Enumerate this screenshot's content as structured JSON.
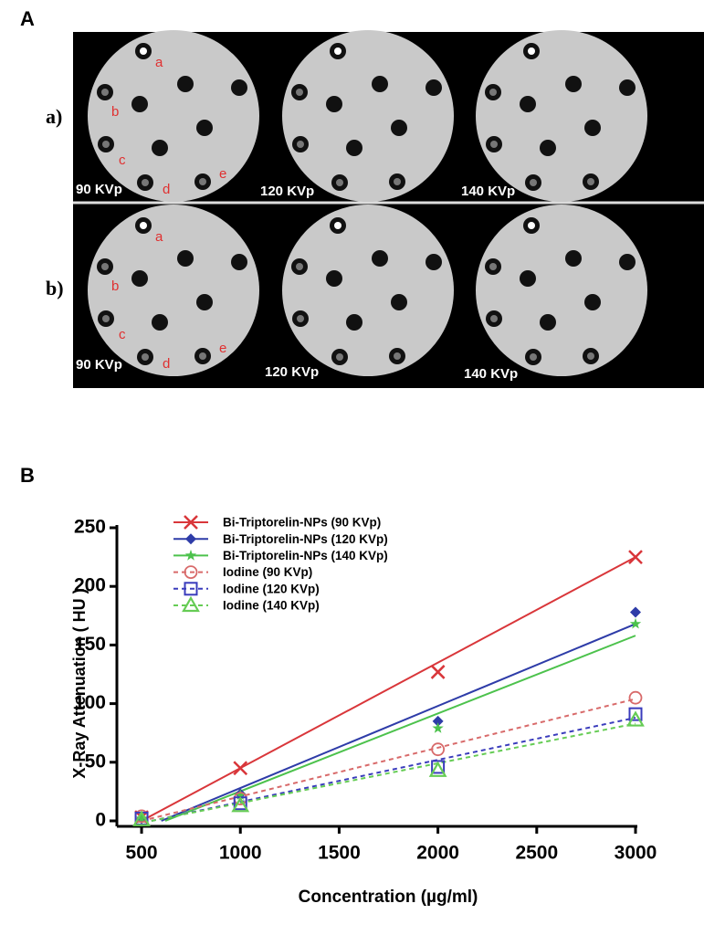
{
  "panel_a": {
    "label": "A",
    "rows": [
      {
        "label": "a)",
        "kvp": [
          "90 KVp",
          "120 KVp",
          "140 KVp"
        ],
        "letters": [
          "a",
          "b",
          "c",
          "d",
          "e"
        ]
      },
      {
        "label": "b)",
        "kvp": [
          "90 KVp",
          "120 KVp",
          "140 KVp"
        ],
        "letters": [
          "a",
          "b",
          "c",
          "d",
          "e"
        ]
      }
    ]
  },
  "panel_b": {
    "label": "B"
  },
  "chart_data": {
    "type": "line",
    "xlabel": "Concentration (µg/ml)",
    "ylabel": "X-Ray Attenuation ( HU )",
    "x": [
      500,
      1000,
      2000,
      3000
    ],
    "xlim": [
      375,
      3000
    ],
    "xticks": [
      500,
      1000,
      1500,
      2000,
      2500,
      3000
    ],
    "ylim": [
      0,
      250
    ],
    "yticks": [
      0,
      50,
      100,
      150,
      200,
      250
    ],
    "legend": "upper left",
    "series": [
      {
        "name": "Bi-Triptorelin-NPs (90 KVp)",
        "color": "#d9363a",
        "marker": "x",
        "dashed": false,
        "values": [
          3,
          45,
          127,
          225
        ],
        "fit_x": [
          500,
          3000
        ],
        "fit_y": [
          0,
          225
        ]
      },
      {
        "name": "Bi-Triptorelin-NPs (120 KVp)",
        "color": "#2e3ca8",
        "marker": "diamond",
        "dashed": false,
        "values": [
          2,
          23,
          85,
          178
        ],
        "fit_x": [
          600,
          3000
        ],
        "fit_y": [
          0,
          168
        ]
      },
      {
        "name": "Bi-Triptorelin-NPs (140 KVp)",
        "color": "#4cc24c",
        "marker": "star",
        "dashed": false,
        "values": [
          2,
          22,
          79,
          168
        ],
        "fit_x": [
          620,
          3000
        ],
        "fit_y": [
          0,
          158
        ]
      },
      {
        "name": "Iodine (90 KVp)",
        "color": "#d86a6a",
        "marker": "circle",
        "dashed": true,
        "values": [
          4,
          19,
          61,
          105
        ],
        "fit_x": [
          500,
          3000
        ],
        "fit_y": [
          0,
          104
        ]
      },
      {
        "name": "Iodine (120 KVp)",
        "color": "#3a3cbc",
        "marker": "square",
        "dashed": true,
        "values": [
          2,
          15,
          46,
          91
        ],
        "fit_x": [
          550,
          3000
        ],
        "fit_y": [
          0,
          88
        ]
      },
      {
        "name": "Iodine (140 KVp)",
        "color": "#66cc55",
        "marker": "triangle",
        "dashed": true,
        "values": [
          1,
          13,
          43,
          86
        ],
        "fit_x": [
          550,
          3000
        ],
        "fit_y": [
          0,
          83
        ]
      }
    ]
  }
}
